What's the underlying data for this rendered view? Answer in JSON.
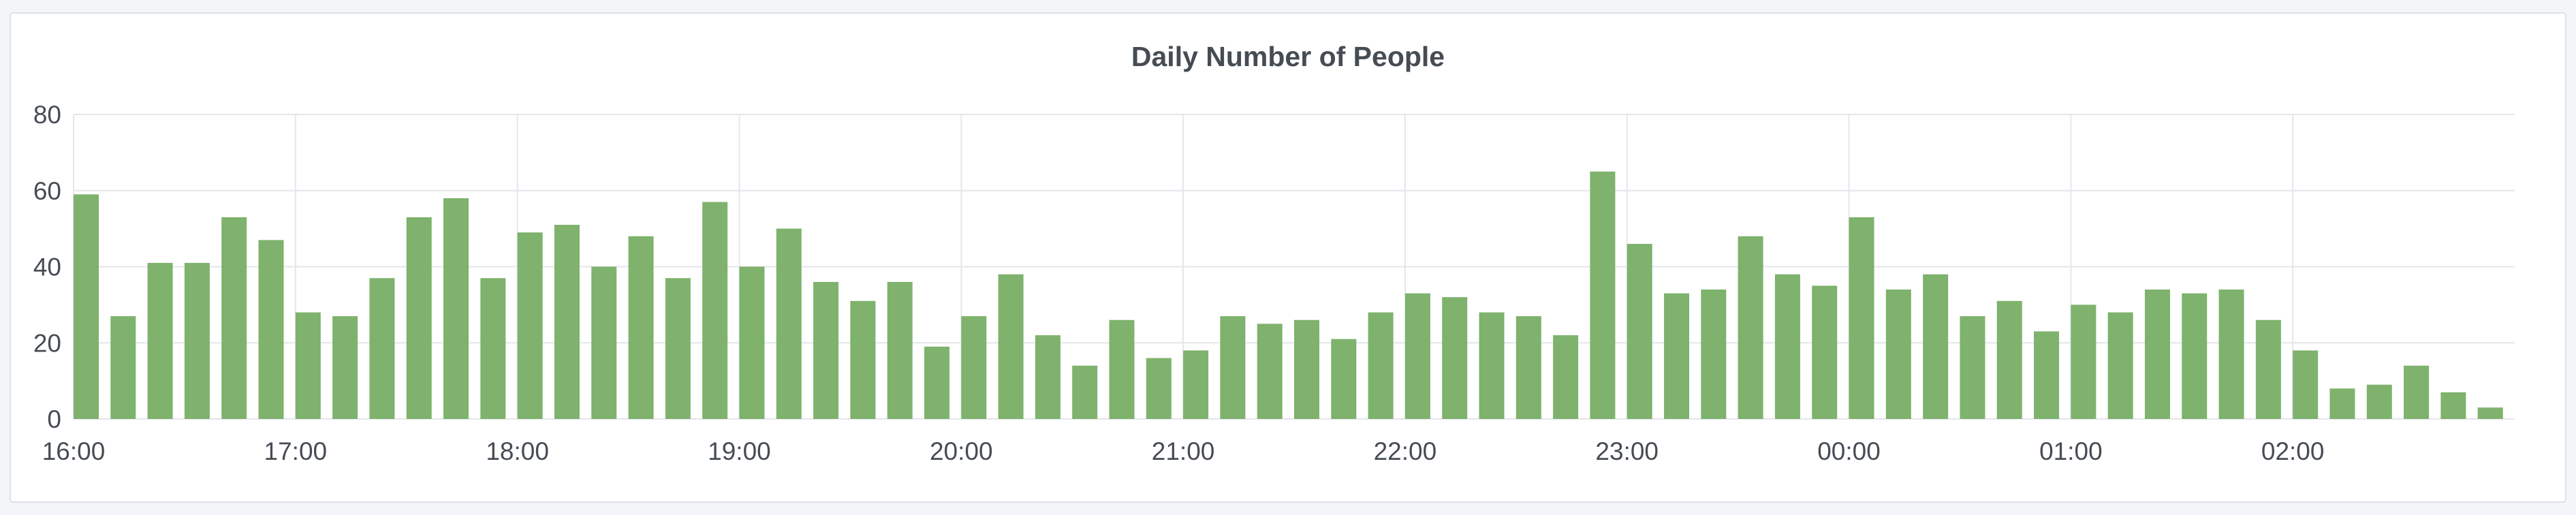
{
  "panel": {
    "title": "Daily Number of People"
  },
  "chart_data": {
    "type": "bar",
    "title": "Daily Number of People",
    "xlabel": "",
    "ylabel": "",
    "ylim": [
      0,
      80
    ],
    "yticks": [
      0,
      20,
      40,
      60,
      80
    ],
    "x_tick_labels": [
      "16:00",
      "17:00",
      "18:00",
      "19:00",
      "20:00",
      "21:00",
      "22:00",
      "23:00",
      "00:00",
      "01:00",
      "02:00"
    ],
    "bar_interval_minutes": 10,
    "grid": true,
    "color": "#7eb26d",
    "values": [
      59,
      27,
      41,
      41,
      53,
      47,
      28,
      27,
      37,
      53,
      58,
      37,
      49,
      51,
      40,
      48,
      37,
      57,
      40,
      50,
      36,
      31,
      36,
      19,
      27,
      38,
      22,
      14,
      26,
      16,
      18,
      27,
      25,
      26,
      21,
      28,
      33,
      32,
      28,
      27,
      22,
      65,
      46,
      33,
      34,
      48,
      38,
      35,
      53,
      34,
      38,
      27,
      31,
      23,
      30,
      28,
      34,
      33,
      34,
      26,
      18,
      8,
      9,
      14,
      7,
      3
    ]
  }
}
